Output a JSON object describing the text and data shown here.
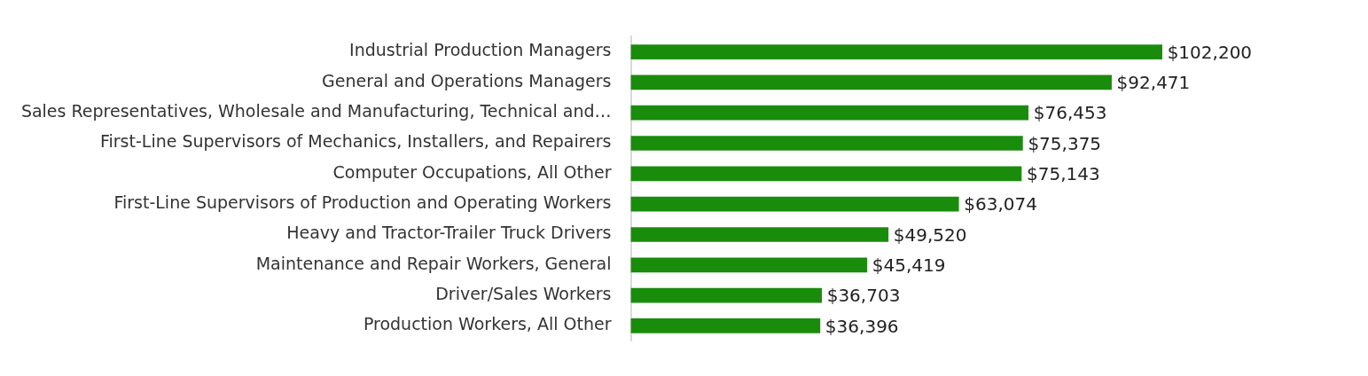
{
  "chart_data": {
    "type": "bar",
    "orientation": "horizontal",
    "categories": [
      "Industrial Production Managers",
      "General and Operations Managers",
      "Sales Representatives, Wholesale and Manufacturing, Technical and…",
      "First-Line Supervisors of Mechanics, Installers, and Repairers",
      "Computer Occupations, All Other",
      "First-Line Supervisors of Production and Operating Workers",
      "Heavy and Tractor-Trailer Truck Drivers",
      "Maintenance and Repair Workers, General",
      "Driver/Sales Workers",
      "Production Workers, All Other"
    ],
    "values": [
      102200,
      92471,
      76453,
      75375,
      75143,
      63074,
      49520,
      45419,
      36703,
      36396
    ],
    "value_labels": [
      "$102,200",
      "$92,471",
      "$76,453",
      "$75,375",
      "$75,143",
      "$63,074",
      "$49,520",
      "$45,419",
      "$36,703",
      "$36,396"
    ],
    "color": "#1a8c0c",
    "grid": false,
    "legend": false
  }
}
